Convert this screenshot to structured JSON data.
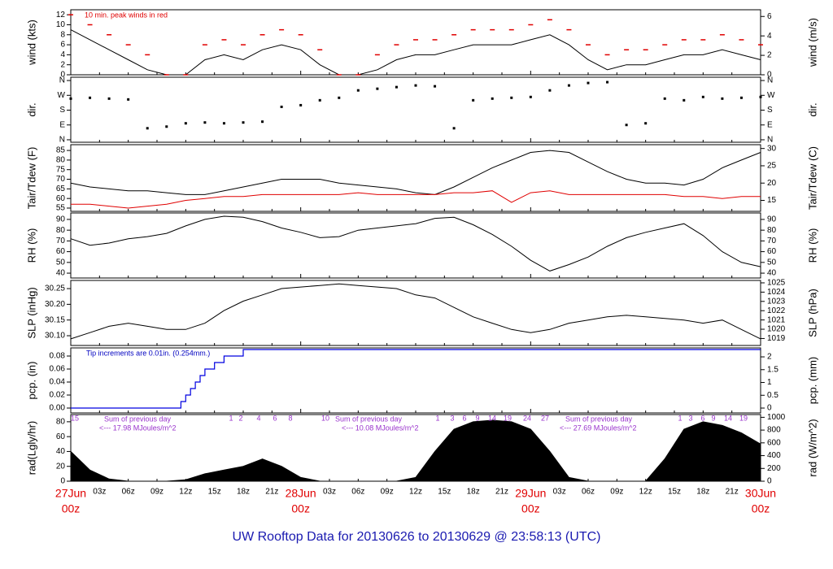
{
  "title": "UW Rooftop Data for 20130626  to  20130629 @ 23:58:13  (UTC)",
  "x_axis": {
    "xlim": [
      0,
      72
    ],
    "xticks": [
      {
        "value": 3,
        "label": "03z"
      },
      {
        "value": 6,
        "label": "06z"
      },
      {
        "value": 9,
        "label": "09z"
      },
      {
        "value": 12,
        "label": "12z"
      },
      {
        "value": 15,
        "label": "15z"
      },
      {
        "value": 18,
        "label": "18z"
      },
      {
        "value": 21,
        "label": "21z"
      },
      {
        "value": 27,
        "label": "03z"
      },
      {
        "value": 30,
        "label": "06z"
      },
      {
        "value": 33,
        "label": "09z"
      },
      {
        "value": 36,
        "label": "12z"
      },
      {
        "value": 39,
        "label": "15z"
      },
      {
        "value": 42,
        "label": "18z"
      },
      {
        "value": 45,
        "label": "21z"
      },
      {
        "value": 51,
        "label": "03z"
      },
      {
        "value": 54,
        "label": "06z"
      },
      {
        "value": 57,
        "label": "09z"
      },
      {
        "value": 60,
        "label": "12z"
      },
      {
        "value": 63,
        "label": "15z"
      },
      {
        "value": 66,
        "label": "18z"
      },
      {
        "value": 69,
        "label": "21z"
      }
    ],
    "day_ticks": [
      {
        "value": 0,
        "label": "27Jun",
        "hour": "00z"
      },
      {
        "value": 24,
        "label": "28Jun",
        "hour": "00z"
      },
      {
        "value": 48,
        "label": "29Jun",
        "hour": "00z"
      },
      {
        "value": 72,
        "label": "30Jun",
        "hour": "00z"
      }
    ],
    "day_color": "#e00000"
  },
  "chart_data": [
    {
      "type": "line",
      "ylabel": "wind (kts)",
      "y2label": "wind (m/s)",
      "ylim": [
        0,
        13
      ],
      "yticks": [
        0,
        2,
        4,
        6,
        8,
        10,
        12
      ],
      "y2lim": [
        0,
        6.69
      ],
      "y2ticks": [
        0,
        2,
        4,
        6
      ],
      "annotation": "10 min. peak winds in red",
      "annotation_color": "#e00000",
      "x": [
        0,
        2,
        4,
        6,
        8,
        10,
        12,
        14,
        16,
        18,
        20,
        22,
        24,
        26,
        28,
        30,
        32,
        34,
        36,
        38,
        40,
        42,
        44,
        46,
        48,
        50,
        52,
        54,
        56,
        58,
        60,
        62,
        64,
        66,
        68,
        70,
        72
      ],
      "series": [
        {
          "color": "#000000",
          "mode": "line",
          "values": [
            9,
            7,
            5,
            3,
            1,
            0,
            0,
            3,
            4,
            3,
            5,
            6,
            5,
            2,
            0,
            0,
            1,
            3,
            4,
            4,
            5,
            6,
            6,
            6,
            7,
            8,
            6,
            3,
            1,
            2,
            2,
            3,
            4,
            4,
            5,
            4,
            3
          ]
        },
        {
          "color": "#e00000",
          "mode": "markers",
          "values": [
            12,
            10,
            8,
            6,
            4,
            0,
            0,
            6,
            7,
            6,
            8,
            9,
            8,
            5,
            0,
            0,
            4,
            6,
            7,
            7,
            8,
            9,
            9,
            9,
            10,
            11,
            9,
            6,
            4,
            5,
            5,
            6,
            7,
            7,
            8,
            7,
            6
          ]
        }
      ]
    },
    {
      "type": "scatter",
      "ylabel": "dir.",
      "y2label": "dir.",
      "ylim": [
        -15,
        380
      ],
      "yticks": [
        {
          "value": 0,
          "label": "N"
        },
        {
          "value": 90,
          "label": "E"
        },
        {
          "value": 180,
          "label": "S"
        },
        {
          "value": 270,
          "label": "W"
        },
        {
          "value": 360,
          "label": "N"
        }
      ],
      "y2lim": [
        -15,
        380
      ],
      "y2ticks": [
        {
          "value": 0,
          "label": "N"
        },
        {
          "value": 90,
          "label": "E"
        },
        {
          "value": 180,
          "label": "S"
        },
        {
          "value": 270,
          "label": "W"
        },
        {
          "value": 360,
          "label": "N"
        }
      ],
      "x": [
        0,
        2,
        4,
        6,
        8,
        10,
        12,
        14,
        16,
        18,
        20,
        22,
        24,
        26,
        28,
        30,
        32,
        34,
        36,
        38,
        40,
        42,
        44,
        46,
        48,
        50,
        52,
        54,
        56,
        58,
        60,
        62,
        64,
        66,
        68,
        70,
        72
      ],
      "series": [
        {
          "color": "#000000",
          "values": [
            250,
            255,
            250,
            245,
            70,
            80,
            100,
            105,
            100,
            105,
            110,
            200,
            210,
            240,
            255,
            300,
            310,
            320,
            330,
            325,
            70,
            240,
            250,
            255,
            260,
            300,
            330,
            345,
            350,
            90,
            100,
            250,
            240,
            260,
            250,
            255,
            260
          ]
        }
      ]
    },
    {
      "type": "line",
      "ylabel": "Tair/Tdew (F)",
      "y2label": "Tair/Tdew (C)",
      "ylim": [
        53.3,
        88
      ],
      "yticks": [
        55,
        60,
        65,
        70,
        75,
        80,
        85
      ],
      "y2lim": [
        11.83,
        31.1
      ],
      "y2ticks": [
        15,
        20,
        25,
        30
      ],
      "x": [
        0,
        2,
        4,
        6,
        8,
        10,
        12,
        14,
        16,
        18,
        20,
        22,
        24,
        26,
        28,
        30,
        32,
        34,
        36,
        38,
        40,
        42,
        44,
        46,
        48,
        50,
        52,
        54,
        56,
        58,
        60,
        62,
        64,
        66,
        68,
        70,
        72
      ],
      "series": [
        {
          "color": "#000000",
          "mode": "line",
          "values": [
            68,
            66,
            65,
            64,
            64,
            63,
            62,
            62,
            64,
            66,
            68,
            70,
            70,
            70,
            68,
            67,
            66,
            65,
            63,
            62,
            66,
            71,
            76,
            80,
            84,
            85,
            84,
            79,
            74,
            70,
            68,
            68,
            67,
            70,
            76,
            80,
            84
          ]
        },
        {
          "color": "#e00000",
          "mode": "line",
          "values": [
            57,
            57,
            56,
            55,
            56,
            57,
            59,
            60,
            61,
            61,
            62,
            62,
            62,
            62,
            62,
            63,
            62,
            62,
            62,
            62,
            63,
            63,
            64,
            58,
            63,
            64,
            62,
            62,
            62,
            62,
            62,
            62,
            61,
            61,
            60,
            61,
            61
          ]
        }
      ]
    },
    {
      "type": "line",
      "ylabel": "RH (%)",
      "y2label": "RH (%)",
      "ylim": [
        35.5,
        96
      ],
      "yticks": [
        40,
        50,
        60,
        70,
        80,
        90
      ],
      "y2lim": [
        35.5,
        96
      ],
      "y2ticks": [
        40,
        50,
        60,
        70,
        80,
        90
      ],
      "x": [
        0,
        2,
        4,
        6,
        8,
        10,
        12,
        14,
        16,
        18,
        20,
        22,
        24,
        26,
        28,
        30,
        32,
        34,
        36,
        38,
        40,
        42,
        44,
        46,
        48,
        50,
        52,
        54,
        56,
        58,
        60,
        62,
        64,
        66,
        68,
        70,
        72
      ],
      "series": [
        {
          "color": "#000000",
          "mode": "line",
          "values": [
            72,
            66,
            68,
            72,
            74,
            77,
            84,
            90,
            93,
            92,
            88,
            82,
            78,
            73,
            74,
            80,
            82,
            84,
            86,
            91,
            92,
            85,
            76,
            65,
            52,
            42,
            48,
            55,
            65,
            73,
            78,
            82,
            86,
            75,
            60,
            50,
            46
          ]
        }
      ]
    },
    {
      "type": "line",
      "ylabel": "SLP (inHg)",
      "y2label": "SLP (hPa)",
      "ylim": [
        30.069,
        30.276
      ],
      "yticks": [
        {
          "value": 30.1,
          "label": "30.10"
        },
        30.15,
        {
          "value": 30.2,
          "label": "30.20"
        },
        30.25
      ],
      "y2lim": [
        1018.25,
        1025.26
      ],
      "y2ticks": [
        1019,
        1020,
        1021,
        1022,
        1023,
        1024,
        1025
      ],
      "x": [
        0,
        2,
        4,
        6,
        8,
        10,
        12,
        14,
        16,
        18,
        20,
        22,
        24,
        26,
        28,
        30,
        32,
        34,
        36,
        38,
        40,
        42,
        44,
        46,
        48,
        50,
        52,
        54,
        56,
        58,
        60,
        62,
        64,
        66,
        68,
        70,
        72
      ],
      "series": [
        {
          "color": "#000000",
          "mode": "line",
          "values": [
            30.09,
            30.11,
            30.13,
            30.14,
            30.13,
            30.12,
            30.12,
            30.14,
            30.18,
            30.21,
            30.23,
            30.25,
            30.255,
            30.26,
            30.265,
            30.26,
            30.255,
            30.25,
            30.23,
            30.22,
            30.19,
            30.16,
            30.14,
            30.12,
            30.11,
            30.12,
            30.14,
            30.15,
            30.16,
            30.165,
            30.16,
            30.155,
            30.15,
            30.14,
            30.15,
            30.12,
            30.09
          ]
        }
      ]
    },
    {
      "type": "step",
      "ylabel": "pcp. (in)",
      "y2label": "pcp. (mm)",
      "ylim": [
        -0.0075,
        0.0925
      ],
      "yticks": [
        {
          "value": 0,
          "label": "0.00"
        },
        0.02,
        0.04,
        0.06,
        0.08
      ],
      "y2lim": [
        -0.19,
        2.35
      ],
      "y2ticks": [
        0,
        0.5,
        1,
        1.5,
        2
      ],
      "annotation": "Tip increments are 0.01in. (0.254mm.)",
      "annotation_color": "#0000c0",
      "x": [
        0,
        11,
        11.5,
        12,
        12.5,
        13,
        13.5,
        14,
        15,
        16,
        18,
        72
      ],
      "series": [
        {
          "color": "#0000e0",
          "values": [
            0,
            0,
            0.01,
            0.02,
            0.03,
            0.04,
            0.05,
            0.06,
            0.07,
            0.08,
            0.09,
            0.09
          ]
        }
      ]
    },
    {
      "type": "area",
      "ylabel": "rad(Lgly/hr)",
      "y2label": "rad (W/m^2)",
      "ylim": [
        0,
        89.7
      ],
      "yticks": [
        0,
        20,
        40,
        60,
        80
      ],
      "y2lim": [
        0,
        1043
      ],
      "y2ticks": [
        0,
        200,
        400,
        600,
        800,
        1000
      ],
      "annotation_color": "#9933cc",
      "notes": [
        "Sum of previous day",
        "<--- 17.98 MJoules/m^2",
        "Sum of previous day",
        "<--- 10.08 MJoules/m^2",
        "Sum of previous day",
        "<--- 27.69 MJoules/m^2"
      ],
      "hour_labels": [
        "15",
        "1",
        "2",
        "4",
        "6",
        "8",
        "10",
        "1",
        "3",
        "6",
        "9",
        "14",
        "19",
        "24",
        "27",
        "1",
        "3",
        "6",
        "9",
        "14",
        "19"
      ],
      "x": [
        0,
        2,
        4,
        6,
        8,
        10,
        12,
        14,
        16,
        18,
        20,
        22,
        24,
        26,
        28,
        30,
        32,
        34,
        36,
        38,
        40,
        42,
        44,
        46,
        48,
        50,
        52,
        54,
        56,
        58,
        60,
        62,
        64,
        66,
        68,
        70,
        72
      ],
      "series": [
        {
          "color": "#000000",
          "values": [
            40,
            15,
            3,
            0,
            0,
            0,
            2,
            10,
            15,
            20,
            30,
            20,
            5,
            0,
            0,
            0,
            0,
            0,
            5,
            40,
            70,
            80,
            82,
            80,
            70,
            40,
            5,
            0,
            0,
            0,
            0,
            30,
            70,
            80,
            75,
            65,
            50
          ]
        }
      ]
    }
  ]
}
